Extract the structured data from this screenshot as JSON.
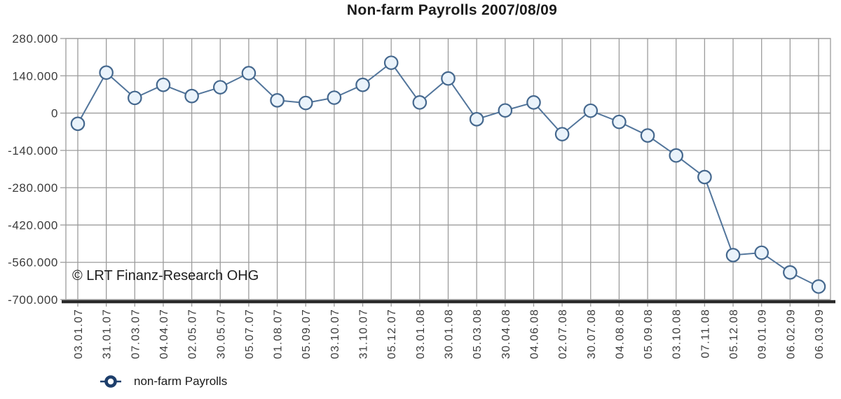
{
  "page": {
    "title": "Non-farm Payrolls 2007/08/09",
    "copyright": "© LRT Finanz-Research OHG",
    "legend": {
      "label": "non-farm Payrolls"
    }
  },
  "chart_data": {
    "type": "line",
    "title": "Non-farm Payrolls 2007/08/09",
    "x_labels": [
      "03.01.07",
      "31.01.07",
      "07.03.07",
      "04.04.07",
      "02.05.07",
      "30.05.07",
      "05.07.07",
      "01.08.07",
      "05.09.07",
      "03.10.07",
      "31.10.07",
      "05.12.07",
      "03.01.08",
      "30.01.08",
      "05.03.08",
      "30.04.08",
      "04.06.08",
      "02.07.08",
      "30.07.08",
      "04.08.08",
      "05.09.08",
      "03.10.08",
      "07.11.08",
      "05.12.08",
      "09.01.09",
      "06.02.09",
      "06.03.09"
    ],
    "series": [
      {
        "name": "non-farm Payrolls",
        "values": [
          -40000,
          152000,
          57000,
          106000,
          64000,
          97000,
          150000,
          48000,
          38000,
          58000,
          106000,
          189000,
          40000,
          130000,
          -23000,
          10000,
          40000,
          -79000,
          9000,
          -33000,
          -84000,
          -159000,
          -240000,
          -533000,
          -524000,
          -598000,
          -651000
        ]
      }
    ],
    "y_tick_labels": [
      "280.000",
      "140.000",
      "0",
      "-140.000",
      "-280.000",
      "-420.000",
      "-560.000",
      "-700.000"
    ],
    "ylim": [
      -700000,
      280000
    ],
    "y_step": 140000,
    "grid": true,
    "legend_position": "bottom-left",
    "annotations": [
      "© LRT Finanz-Research OHG"
    ],
    "colors": {
      "line": "#52759b",
      "marker_fill": "#eaf3fb",
      "marker_stroke": "#45688e",
      "grid": "#9c9c9c",
      "axis": "#2a2a2a",
      "tick_label": "#3c3c3c",
      "legend_marker": "#1d3e6b"
    }
  }
}
